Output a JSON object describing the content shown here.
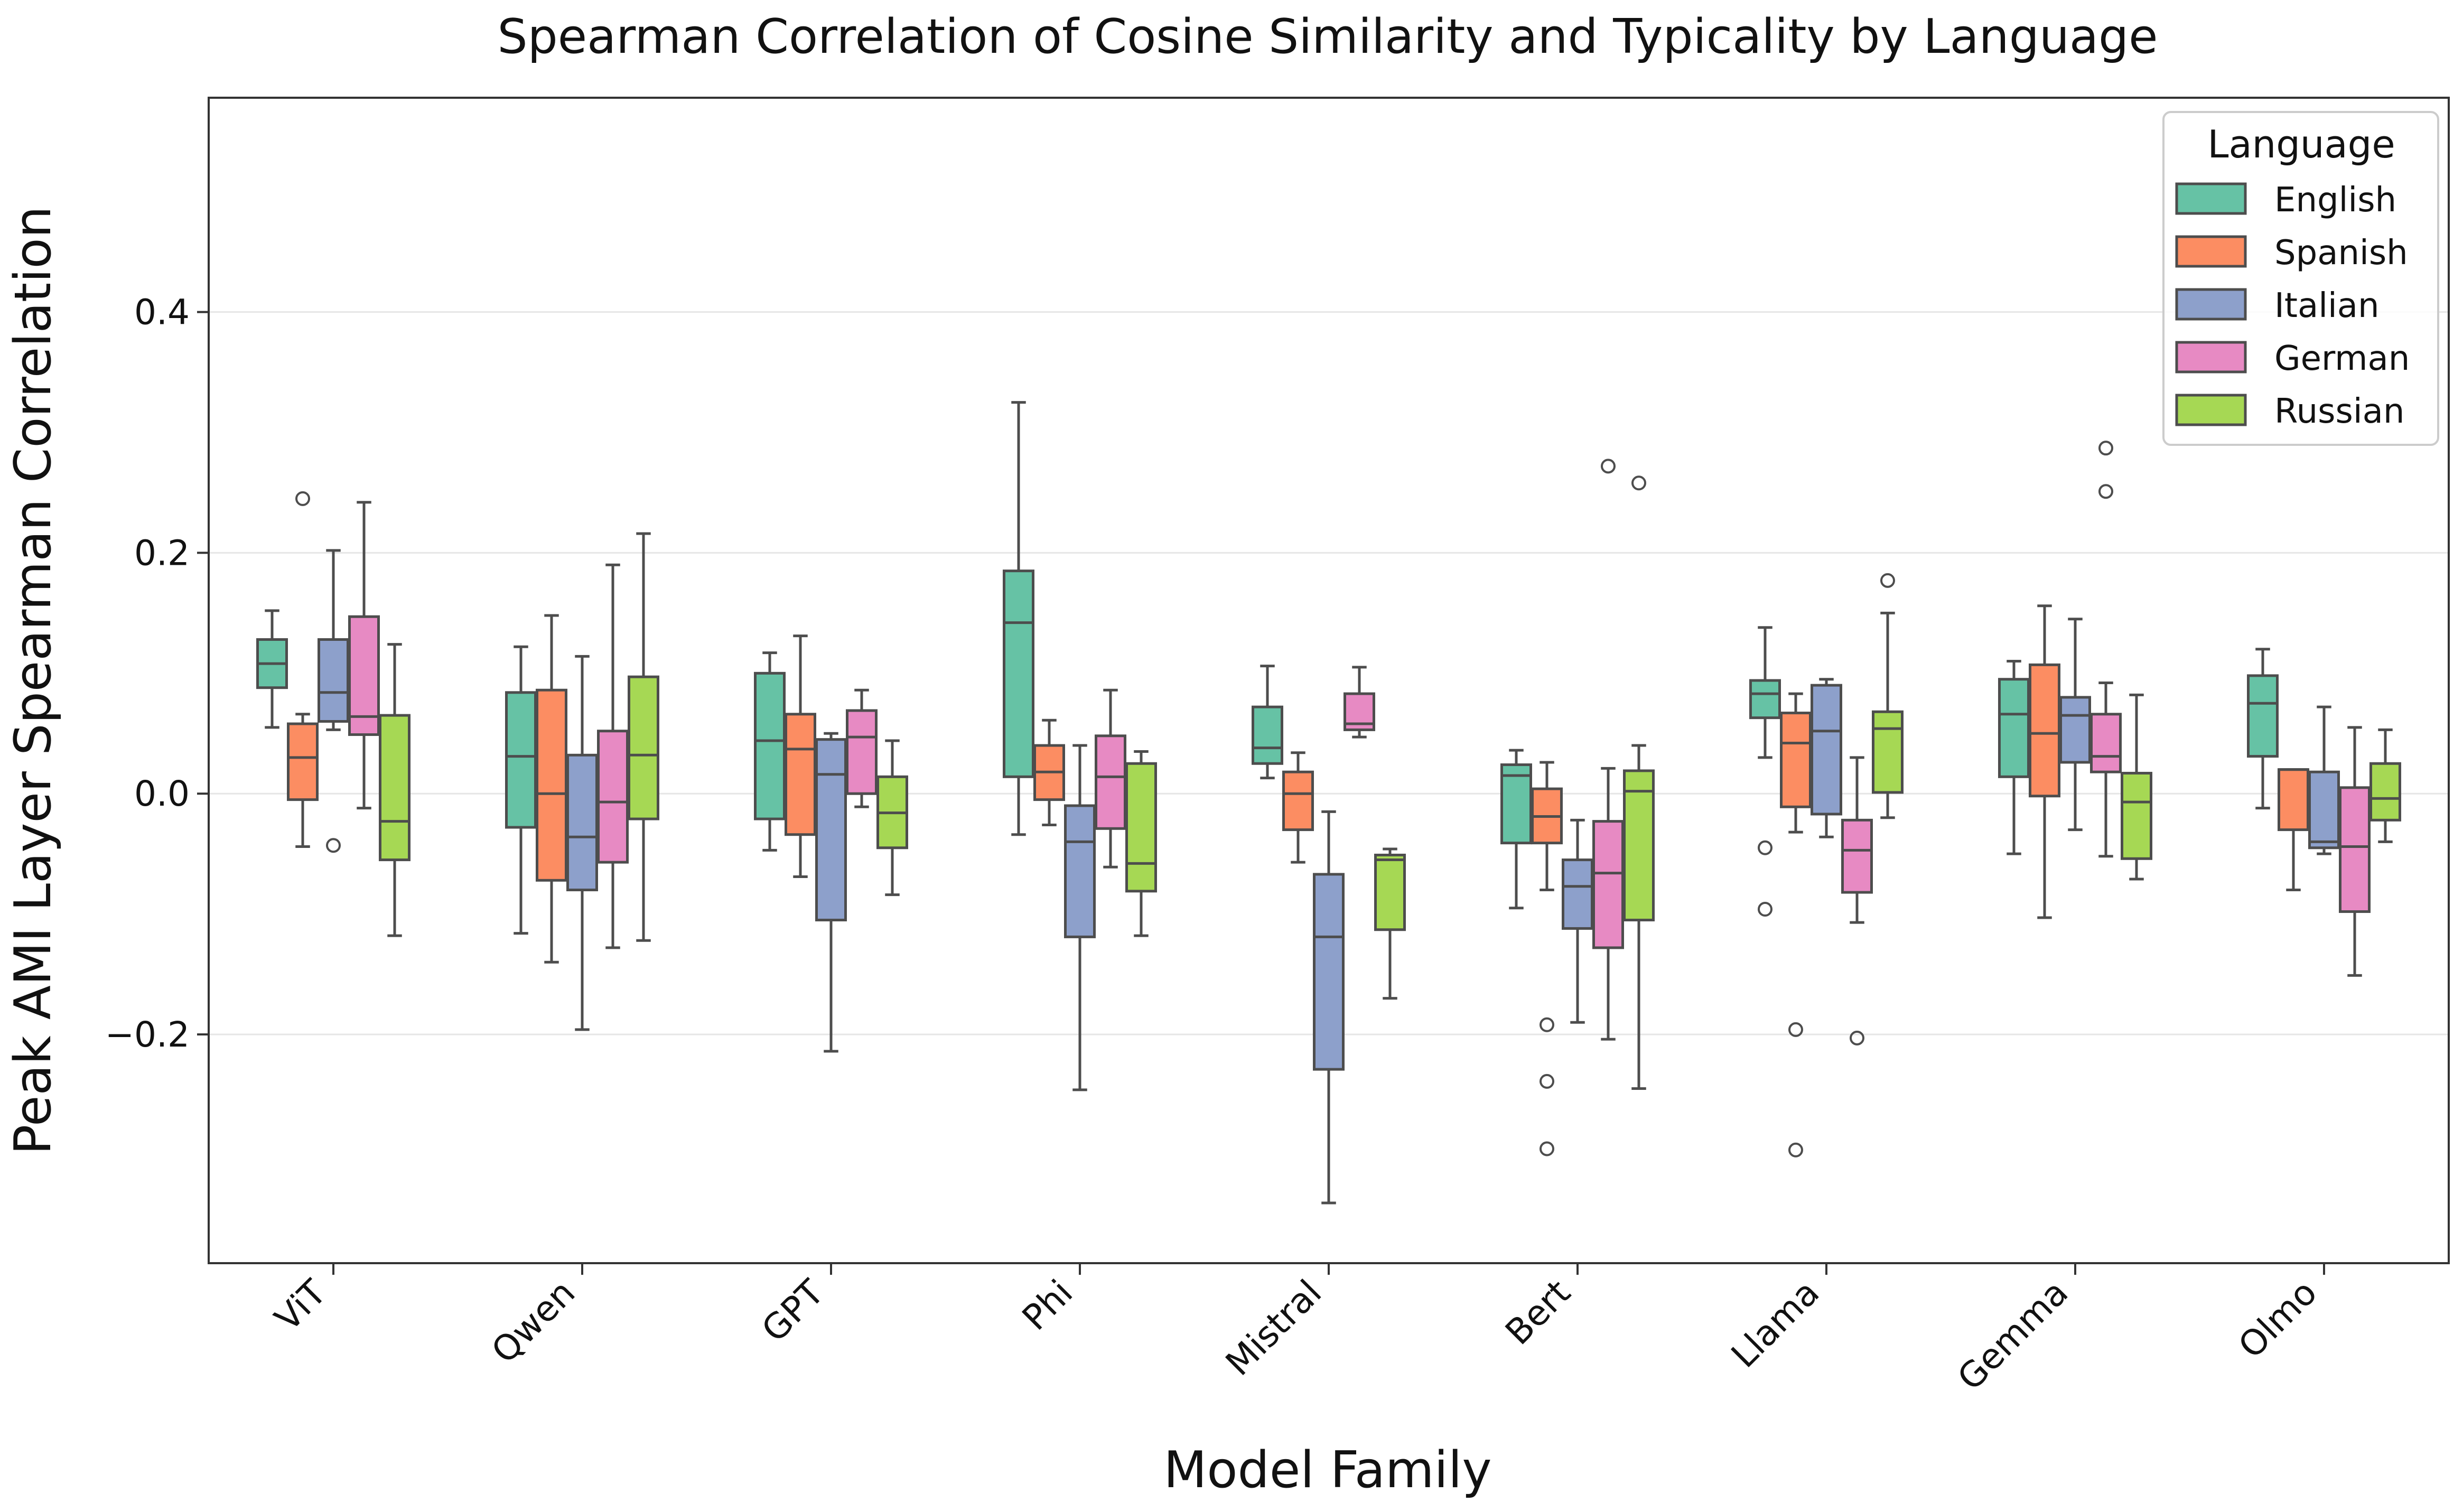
{
  "chart_data": {
    "type": "boxplot",
    "title": "Spearman Correlation of Cosine Similarity and Typicality by Language",
    "xlabel": "Model Family",
    "ylabel": "Peak AMI Layer Spearman Correlation",
    "ylim": [
      -0.39,
      0.578
    ],
    "yticks": [
      -0.2,
      0.0,
      0.2,
      0.4
    ],
    "ytick_labels": [
      "−0.2",
      "0.0",
      "0.2",
      "0.4"
    ],
    "grid": "horizontal",
    "categories": [
      "ViT",
      "Qwen",
      "GPT",
      "Phi",
      "Mistral",
      "Bert",
      "Llama",
      "Gemma",
      "Olmo"
    ],
    "legend": {
      "title": "Language",
      "placement": "top-right",
      "entries": [
        "English",
        "Spanish",
        "Italian",
        "German",
        "Russian"
      ]
    },
    "colors": {
      "English": "#66c2a5",
      "Spanish": "#fc8d62",
      "Italian": "#8da0cb",
      "German": "#e78ac3",
      "Russian": "#a6d854",
      "outline": "#4d4d4d"
    },
    "series": [
      {
        "name": "English",
        "boxes": [
          {
            "category": "ViT",
            "whislo": 0.055,
            "q1": 0.088,
            "med": 0.108,
            "q3": 0.128,
            "whishi": 0.152,
            "fliers": []
          },
          {
            "category": "Qwen",
            "whislo": -0.116,
            "q1": -0.028,
            "med": 0.031,
            "q3": 0.084,
            "whishi": 0.122,
            "fliers": []
          },
          {
            "category": "GPT",
            "whislo": -0.047,
            "q1": -0.021,
            "med": 0.044,
            "q3": 0.1,
            "whishi": 0.117,
            "fliers": []
          },
          {
            "category": "Phi",
            "whislo": -0.034,
            "q1": 0.014,
            "med": 0.142,
            "q3": 0.185,
            "whishi": 0.325,
            "fliers": []
          },
          {
            "category": "Mistral",
            "whislo": 0.013,
            "q1": 0.025,
            "med": 0.038,
            "q3": 0.072,
            "whishi": 0.106,
            "fliers": []
          },
          {
            "category": "Bert",
            "whislo": -0.095,
            "q1": -0.041,
            "med": 0.015,
            "q3": 0.024,
            "whishi": 0.036,
            "fliers": []
          },
          {
            "category": "Llama",
            "whislo": 0.03,
            "q1": 0.063,
            "med": 0.083,
            "q3": 0.094,
            "whishi": 0.138,
            "fliers": [
              -0.045,
              -0.096
            ]
          },
          {
            "category": "Gemma",
            "whislo": -0.05,
            "q1": 0.014,
            "med": 0.066,
            "q3": 0.095,
            "whishi": 0.11,
            "fliers": []
          },
          {
            "category": "Olmo",
            "whislo": -0.012,
            "q1": 0.031,
            "med": 0.075,
            "q3": 0.098,
            "whishi": 0.12,
            "fliers": []
          }
        ]
      },
      {
        "name": "Spanish",
        "boxes": [
          {
            "category": "ViT",
            "whislo": -0.044,
            "q1": -0.005,
            "med": 0.03,
            "q3": 0.058,
            "whishi": 0.066,
            "fliers": [
              0.245
            ]
          },
          {
            "category": "Qwen",
            "whislo": -0.14,
            "q1": -0.072,
            "med": 0.0,
            "q3": 0.086,
            "whishi": 0.148,
            "fliers": []
          },
          {
            "category": "GPT",
            "whislo": -0.069,
            "q1": -0.034,
            "med": 0.037,
            "q3": 0.066,
            "whishi": 0.131,
            "fliers": []
          },
          {
            "category": "Phi",
            "whislo": -0.026,
            "q1": -0.005,
            "med": 0.018,
            "q3": 0.04,
            "whishi": 0.061,
            "fliers": []
          },
          {
            "category": "Mistral",
            "whislo": -0.057,
            "q1": -0.03,
            "med": 0.0,
            "q3": 0.018,
            "whishi": 0.034,
            "fliers": []
          },
          {
            "category": "Bert",
            "whislo": -0.08,
            "q1": -0.041,
            "med": -0.019,
            "q3": 0.004,
            "whishi": 0.026,
            "fliers": [
              -0.192,
              -0.239,
              -0.295
            ]
          },
          {
            "category": "Llama",
            "whislo": -0.032,
            "q1": -0.011,
            "med": 0.042,
            "q3": 0.067,
            "whishi": 0.083,
            "fliers": [
              -0.196,
              -0.296
            ]
          },
          {
            "category": "Gemma",
            "whislo": -0.103,
            "q1": -0.002,
            "med": 0.05,
            "q3": 0.107,
            "whishi": 0.156,
            "fliers": []
          },
          {
            "category": "Olmo",
            "whislo": -0.08,
            "q1": -0.03,
            "med": 0.02,
            "q3": 0.02,
            "whishi": 0.02,
            "fliers": []
          }
        ]
      },
      {
        "name": "Italian",
        "boxes": [
          {
            "category": "ViT",
            "whislo": 0.053,
            "q1": 0.06,
            "med": 0.084,
            "q3": 0.128,
            "whishi": 0.202,
            "fliers": [
              -0.043
            ]
          },
          {
            "category": "Qwen",
            "whislo": -0.196,
            "q1": -0.08,
            "med": -0.036,
            "q3": 0.032,
            "whishi": 0.114,
            "fliers": []
          },
          {
            "category": "GPT",
            "whislo": -0.214,
            "q1": -0.105,
            "med": 0.016,
            "q3": 0.045,
            "whishi": 0.05,
            "fliers": []
          },
          {
            "category": "Phi",
            "whislo": -0.246,
            "q1": -0.119,
            "med": -0.04,
            "q3": -0.01,
            "whishi": 0.04,
            "fliers": []
          },
          {
            "category": "Mistral",
            "whislo": -0.34,
            "q1": -0.229,
            "med": -0.119,
            "q3": -0.067,
            "whishi": -0.015,
            "fliers": []
          },
          {
            "category": "Bert",
            "whislo": -0.19,
            "q1": -0.112,
            "med": -0.077,
            "q3": -0.055,
            "whishi": -0.022,
            "fliers": []
          },
          {
            "category": "Llama",
            "whislo": -0.036,
            "q1": -0.017,
            "med": 0.052,
            "q3": 0.09,
            "whishi": 0.095,
            "fliers": []
          },
          {
            "category": "Gemma",
            "whislo": -0.03,
            "q1": 0.026,
            "med": 0.065,
            "q3": 0.08,
            "whishi": 0.145,
            "fliers": []
          },
          {
            "category": "Olmo",
            "whislo": -0.05,
            "q1": -0.045,
            "med": -0.04,
            "q3": 0.018,
            "whishi": 0.072,
            "fliers": []
          }
        ]
      },
      {
        "name": "German",
        "boxes": [
          {
            "category": "ViT",
            "whislo": -0.012,
            "q1": 0.049,
            "med": 0.064,
            "q3": 0.147,
            "whishi": 0.242,
            "fliers": []
          },
          {
            "category": "Qwen",
            "whislo": -0.128,
            "q1": -0.057,
            "med": -0.007,
            "q3": 0.052,
            "whishi": 0.19,
            "fliers": []
          },
          {
            "category": "GPT",
            "whislo": -0.011,
            "q1": 0.0,
            "med": 0.047,
            "q3": 0.069,
            "whishi": 0.086,
            "fliers": []
          },
          {
            "category": "Phi",
            "whislo": -0.061,
            "q1": -0.029,
            "med": 0.014,
            "q3": 0.048,
            "whishi": 0.086,
            "fliers": []
          },
          {
            "category": "Mistral",
            "whislo": 0.047,
            "q1": 0.053,
            "med": 0.058,
            "q3": 0.083,
            "whishi": 0.105,
            "fliers": []
          },
          {
            "category": "Bert",
            "whislo": -0.204,
            "q1": -0.128,
            "med": -0.066,
            "q3": -0.023,
            "whishi": 0.021,
            "fliers": [
              0.272
            ]
          },
          {
            "category": "Llama",
            "whislo": -0.107,
            "q1": -0.082,
            "med": -0.047,
            "q3": -0.022,
            "whishi": 0.03,
            "fliers": [
              -0.203
            ]
          },
          {
            "category": "Gemma",
            "whislo": -0.052,
            "q1": 0.018,
            "med": 0.031,
            "q3": 0.066,
            "whishi": 0.092,
            "fliers": [
              0.287,
              0.251
            ]
          },
          {
            "category": "Olmo",
            "whislo": -0.151,
            "q1": -0.098,
            "med": -0.044,
            "q3": 0.005,
            "whishi": 0.055,
            "fliers": []
          }
        ]
      },
      {
        "name": "Russian",
        "boxes": [
          {
            "category": "ViT",
            "whislo": -0.118,
            "q1": -0.055,
            "med": -0.023,
            "q3": 0.065,
            "whishi": 0.124,
            "fliers": []
          },
          {
            "category": "Qwen",
            "whislo": -0.122,
            "q1": -0.021,
            "med": 0.032,
            "q3": 0.097,
            "whishi": 0.216,
            "fliers": []
          },
          {
            "category": "GPT",
            "whislo": -0.084,
            "q1": -0.045,
            "med": -0.016,
            "q3": 0.014,
            "whishi": 0.044,
            "fliers": []
          },
          {
            "category": "Phi",
            "whislo": -0.118,
            "q1": -0.081,
            "med": -0.058,
            "q3": 0.025,
            "whishi": 0.035,
            "fliers": []
          },
          {
            "category": "Mistral",
            "whislo": -0.17,
            "q1": -0.113,
            "med": -0.055,
            "q3": -0.051,
            "whishi": -0.046,
            "fliers": []
          },
          {
            "category": "Bert",
            "whislo": -0.245,
            "q1": -0.105,
            "med": 0.002,
            "q3": 0.019,
            "whishi": 0.04,
            "fliers": [
              0.258
            ]
          },
          {
            "category": "Llama",
            "whislo": -0.02,
            "q1": 0.001,
            "med": 0.054,
            "q3": 0.068,
            "whishi": 0.15,
            "fliers": [
              0.177
            ]
          },
          {
            "category": "Gemma",
            "whislo": -0.071,
            "q1": -0.054,
            "med": -0.007,
            "q3": 0.017,
            "whishi": 0.082,
            "fliers": []
          },
          {
            "category": "Olmo",
            "whislo": -0.04,
            "q1": -0.022,
            "med": -0.004,
            "q3": 0.025,
            "whishi": 0.053,
            "fliers": []
          }
        ]
      }
    ]
  }
}
